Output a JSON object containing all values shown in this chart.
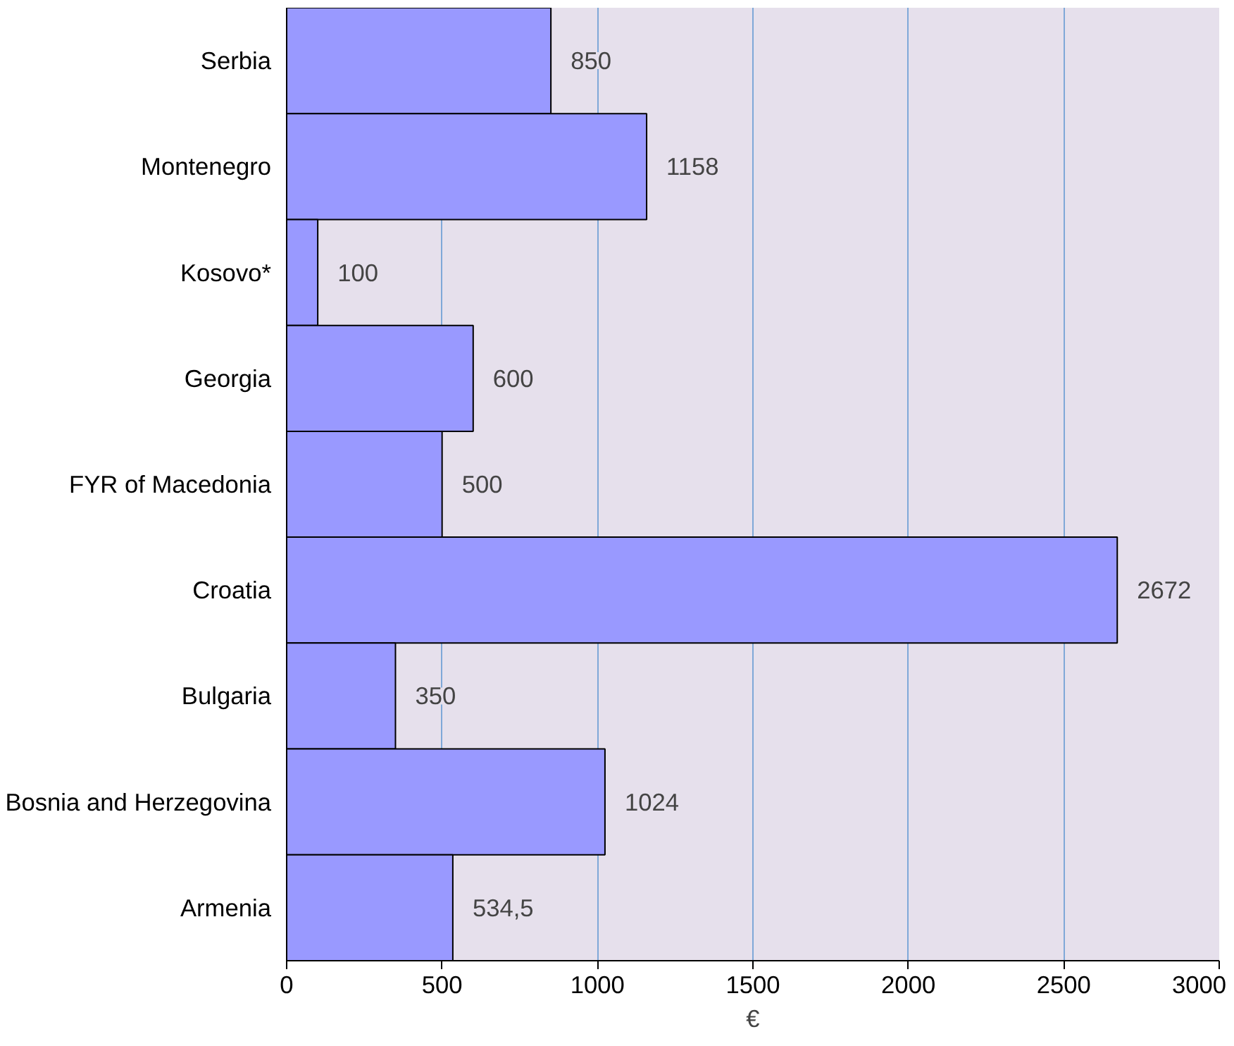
{
  "chart_data": {
    "type": "bar",
    "orientation": "horizontal",
    "xlabel": "€",
    "categories": [
      "Serbia",
      "Montenegro",
      "Kosovo*",
      "Georgia",
      "FYR of Macedonia",
      "Croatia",
      "Bulgaria",
      "Bosnia and Herzegovina",
      "Armenia"
    ],
    "values": [
      850,
      1158,
      100,
      600,
      500,
      2672,
      350,
      1024,
      534.5
    ],
    "value_labels": [
      "850",
      "1158",
      "100",
      "600",
      "500",
      "2672",
      "350",
      "1024",
      "534,5"
    ],
    "color": "#9999ff",
    "xlim": [
      0,
      3000
    ],
    "xticks": [
      0,
      500,
      1000,
      1500,
      2000,
      2500,
      3000
    ],
    "grid": "x"
  }
}
